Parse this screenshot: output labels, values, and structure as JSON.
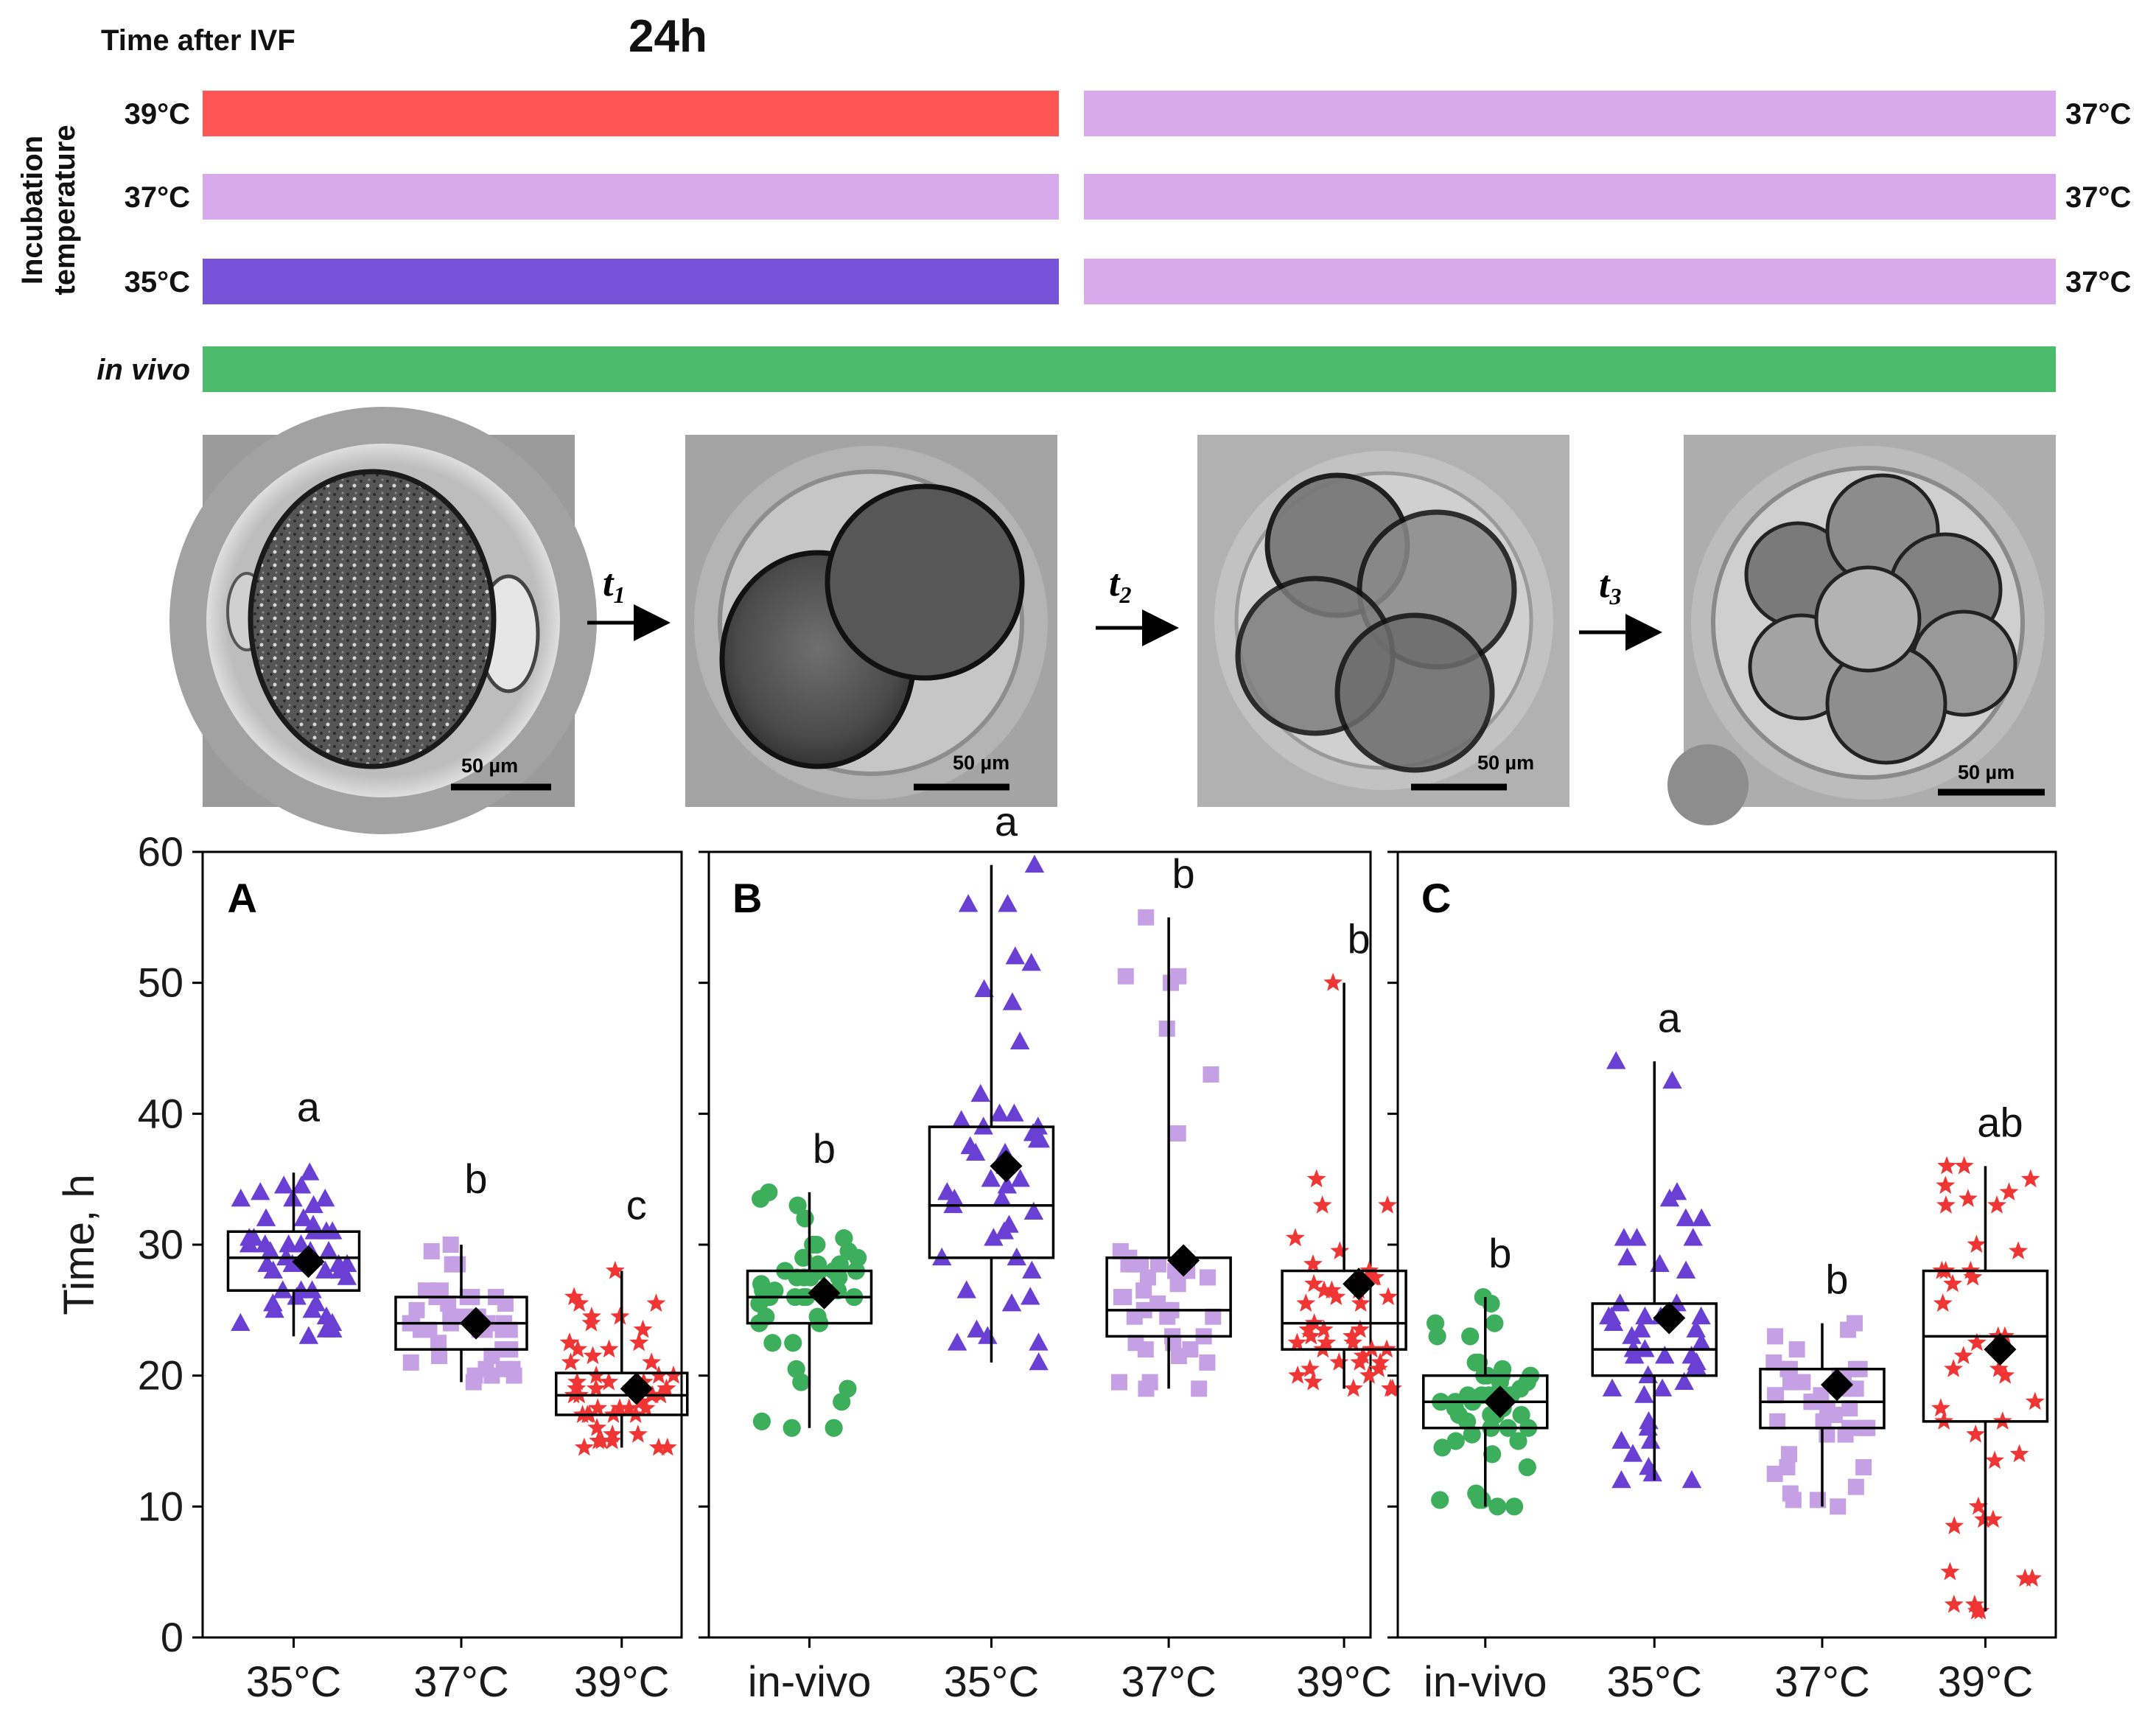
{
  "header": {
    "time_label": "Time after IVF",
    "time_value": "24h",
    "axis_label": [
      "Incubation",
      "temperature"
    ],
    "rows": [
      {
        "label": "39°C",
        "right_label": "37°C",
        "color_before": "#fe5555",
        "color_after": "#d8a9eb",
        "italic": false
      },
      {
        "label": "37°C",
        "right_label": "37°C",
        "color_before": "#d8a9eb",
        "color_after": "#d8a9eb",
        "italic": false
      },
      {
        "label": "35°C",
        "right_label": "37°C",
        "color_before": "#7752d9",
        "color_after": "#d8a9eb",
        "italic": false
      },
      {
        "label": "in vivo",
        "right_label": "",
        "color_before": "#4cbb6c",
        "color_after": "#4cbb6c",
        "italic": true
      }
    ]
  },
  "micrographs": {
    "scale_bar": "50 µm",
    "transitions": [
      "t1",
      "t2",
      "t3"
    ],
    "stages": [
      "zygote",
      "2-cell embryo",
      "4-cell embryo",
      "8-cell embryo"
    ]
  },
  "colors": {
    "in-vivo": "#3dae5c",
    "35°C": "#6a3fd3",
    "37°C": "#c6a0e4",
    "39°C": "#f03535"
  },
  "chart_data": [
    {
      "type": "box",
      "panel": "A",
      "ylabel": "Time, h",
      "ylim": [
        0,
        60
      ],
      "yticks": [
        0,
        10,
        20,
        30,
        40,
        50,
        60
      ],
      "categories": [
        "35°C",
        "37°C",
        "39°C"
      ],
      "boxes": [
        {
          "group": "35°C",
          "min": 23,
          "q1": 26.5,
          "median": 29,
          "q3": 31,
          "max": 35.5,
          "mean": 28.7,
          "letter": "a"
        },
        {
          "group": "37°C",
          "min": 19.5,
          "q1": 22,
          "median": 24,
          "q3": 26,
          "max": 30,
          "mean": 24,
          "letter": "b"
        },
        {
          "group": "39°C",
          "min": 14.5,
          "q1": 17,
          "median": 18.5,
          "q3": 20.2,
          "max": 28,
          "mean": 19,
          "letter": "c"
        }
      ]
    },
    {
      "type": "box",
      "panel": "B",
      "ylim": [
        0,
        60
      ],
      "categories": [
        "in-vivo",
        "35°C",
        "37°C",
        "39°C"
      ],
      "boxes": [
        {
          "group": "in-vivo",
          "min": 16,
          "q1": 24,
          "median": 26,
          "q3": 28,
          "max": 34,
          "mean": 26.3,
          "letter": "b"
        },
        {
          "group": "35°C",
          "min": 21,
          "q1": 29,
          "median": 33,
          "q3": 39,
          "max": 59,
          "mean": 36,
          "letter": "a"
        },
        {
          "group": "37°C",
          "min": 19,
          "q1": 23,
          "median": 25,
          "q3": 29,
          "max": 55,
          "mean": 28.8,
          "letter": "b"
        },
        {
          "group": "39°C",
          "min": 19,
          "q1": 22,
          "median": 24,
          "q3": 28,
          "max": 50,
          "mean": 27,
          "letter": "b"
        }
      ]
    },
    {
      "type": "box",
      "panel": "C",
      "ylim": [
        0,
        60
      ],
      "categories": [
        "in-vivo",
        "35°C",
        "37°C",
        "39°C"
      ],
      "boxes": [
        {
          "group": "in-vivo",
          "min": 10,
          "q1": 16,
          "median": 18,
          "q3": 20,
          "max": 26,
          "mean": 18,
          "letter": "b"
        },
        {
          "group": "35°C",
          "min": 12,
          "q1": 20,
          "median": 22,
          "q3": 25.5,
          "max": 44,
          "mean": 24.4,
          "letter": "a"
        },
        {
          "group": "37°C",
          "min": 10,
          "q1": 16,
          "median": 18,
          "q3": 20.5,
          "max": 24,
          "mean": 19.3,
          "letter": "b"
        },
        {
          "group": "39°C",
          "min": 2,
          "q1": 16.5,
          "median": 23,
          "q3": 28,
          "max": 36,
          "mean": 22,
          "letter": "ab"
        }
      ]
    }
  ]
}
